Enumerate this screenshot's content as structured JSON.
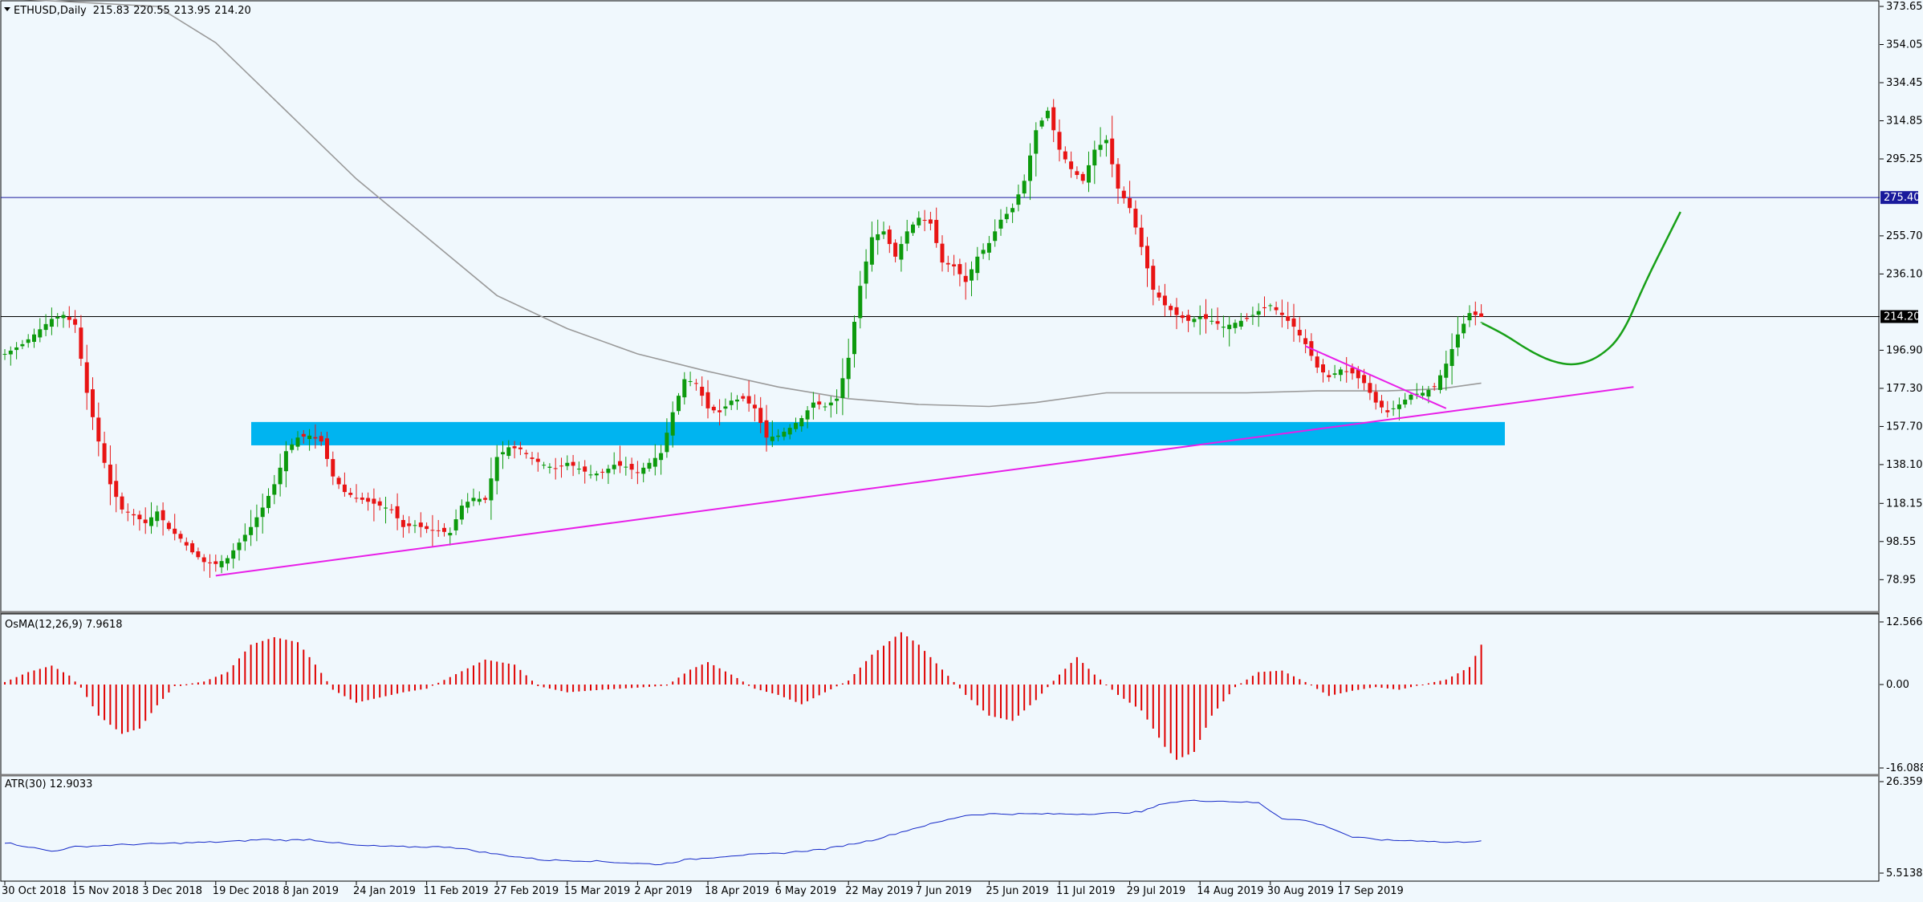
{
  "chart_data": [
    {
      "type": "candlestick",
      "symbol": "ETHUSD",
      "timeframe": "Daily",
      "ohlc_header": {
        "open": "215.83",
        "high": "220.55",
        "low": "213.95",
        "close": "214.20"
      },
      "ylim": [
        70,
        373.65
      ],
      "y_ticks": [
        "373.65",
        "354.05",
        "334.45",
        "314.85",
        "295.25",
        "255.70",
        "236.10",
        "196.90",
        "177.30",
        "157.70",
        "138.10",
        "118.15",
        "98.55",
        "78.95"
      ],
      "x_ticks": [
        "30 Oct 2018",
        "15 Nov 2018",
        "3 Dec 2018",
        "19 Dec 2018",
        "8 Jan 2019",
        "24 Jan 2019",
        "11 Feb 2019",
        "27 Feb 2019",
        "15 Mar 2019",
        "2 Apr 2019",
        "18 Apr 2019",
        "6 May 2019",
        "22 May 2019",
        "7 Jun 2019",
        "25 Jun 2019",
        "11 Jul 2019",
        "29 Jul 2019",
        "14 Aug 2019",
        "30 Aug 2019",
        "17 Sep 2019"
      ],
      "horizontal_levels": [
        {
          "value": 275.4,
          "label": "275.40",
          "color": "#1a1a9c"
        },
        {
          "value": 214.2,
          "label": "214.20",
          "color": "#000000"
        }
      ],
      "support_zone": {
        "y_low": 148,
        "y_high": 160,
        "color": "#00b4f0"
      },
      "candle_waypoints": [
        [
          0,
          195
        ],
        [
          3,
          200
        ],
        [
          5,
          205
        ],
        [
          8,
          213
        ],
        [
          10,
          215
        ],
        [
          12,
          210
        ],
        [
          14,
          175
        ],
        [
          16,
          150
        ],
        [
          18,
          128
        ],
        [
          20,
          115
        ],
        [
          22,
          112
        ],
        [
          24,
          108
        ],
        [
          26,
          114
        ],
        [
          28,
          105
        ],
        [
          30,
          100
        ],
        [
          32,
          93
        ],
        [
          34,
          88
        ],
        [
          36,
          87
        ],
        [
          38,
          90
        ],
        [
          40,
          98
        ],
        [
          42,
          106
        ],
        [
          44,
          116
        ],
        [
          46,
          128
        ],
        [
          48,
          145
        ],
        [
          50,
          152
        ],
        [
          52,
          153
        ],
        [
          54,
          150
        ],
        [
          56,
          132
        ],
        [
          58,
          124
        ],
        [
          60,
          121
        ],
        [
          62,
          119
        ],
        [
          64,
          117
        ],
        [
          66,
          115
        ],
        [
          68,
          106
        ],
        [
          70,
          107
        ],
        [
          72,
          105
        ],
        [
          74,
          104
        ],
        [
          76,
          103
        ],
        [
          78,
          117
        ],
        [
          80,
          121
        ],
        [
          82,
          120
        ],
        [
          84,
          142
        ],
        [
          86,
          147
        ],
        [
          88,
          146
        ],
        [
          90,
          141
        ],
        [
          92,
          138
        ],
        [
          94,
          136
        ],
        [
          96,
          139
        ],
        [
          98,
          136
        ],
        [
          100,
          133
        ],
        [
          102,
          134
        ],
        [
          104,
          138
        ],
        [
          106,
          137
        ],
        [
          108,
          134
        ],
        [
          110,
          139
        ],
        [
          112,
          144
        ],
        [
          114,
          165
        ],
        [
          116,
          182
        ],
        [
          118,
          180
        ],
        [
          120,
          167
        ],
        [
          122,
          165
        ],
        [
          124,
          171
        ],
        [
          126,
          172
        ],
        [
          128,
          167
        ],
        [
          130,
          152
        ],
        [
          132,
          153
        ],
        [
          134,
          157
        ],
        [
          136,
          162
        ],
        [
          138,
          170
        ],
        [
          140,
          168
        ],
        [
          142,
          172
        ],
        [
          144,
          193
        ],
        [
          146,
          230
        ],
        [
          148,
          255
        ],
        [
          150,
          258
        ],
        [
          152,
          245
        ],
        [
          154,
          258
        ],
        [
          156,
          265
        ],
        [
          158,
          262
        ],
        [
          160,
          242
        ],
        [
          162,
          240
        ],
        [
          164,
          232
        ],
        [
          166,
          245
        ],
        [
          168,
          252
        ],
        [
          170,
          264
        ],
        [
          172,
          270
        ],
        [
          174,
          284
        ],
        [
          176,
          310
        ],
        [
          178,
          320
        ],
        [
          180,
          300
        ],
        [
          182,
          290
        ],
        [
          184,
          284
        ],
        [
          186,
          300
        ],
        [
          188,
          305
        ],
        [
          190,
          280
        ],
        [
          192,
          270
        ],
        [
          194,
          250
        ],
        [
          196,
          228
        ],
        [
          198,
          220
        ],
        [
          200,
          215
        ],
        [
          202,
          212
        ],
        [
          204,
          214
        ],
        [
          206,
          212
        ],
        [
          208,
          209
        ],
        [
          210,
          211
        ],
        [
          212,
          213
        ],
        [
          214,
          217
        ],
        [
          216,
          220
        ],
        [
          218,
          215
        ],
        [
          220,
          209
        ],
        [
          222,
          200
        ],
        [
          224,
          188
        ],
        [
          226,
          183
        ],
        [
          228,
          187
        ],
        [
          230,
          185
        ],
        [
          232,
          180
        ],
        [
          234,
          170
        ],
        [
          236,
          165
        ],
        [
          238,
          169
        ],
        [
          240,
          174
        ],
        [
          242,
          175
        ],
        [
          244,
          178
        ],
        [
          246,
          190
        ],
        [
          248,
          205
        ],
        [
          250,
          216
        ],
        [
          252,
          214
        ]
      ],
      "moving_average_waypoints": [
        [
          0,
          380
        ],
        [
          26,
          373.65
        ],
        [
          36,
          355
        ],
        [
          48,
          320
        ],
        [
          60,
          285
        ],
        [
          72,
          255
        ],
        [
          84,
          225
        ],
        [
          96,
          208
        ],
        [
          108,
          195
        ],
        [
          120,
          186
        ],
        [
          132,
          178
        ],
        [
          144,
          172
        ],
        [
          156,
          169
        ],
        [
          168,
          168
        ],
        [
          176,
          170
        ],
        [
          188,
          175
        ],
        [
          200,
          175
        ],
        [
          212,
          175
        ],
        [
          224,
          176
        ],
        [
          236,
          176
        ],
        [
          245,
          177
        ],
        [
          252,
          180
        ]
      ],
      "trendlines": [
        {
          "from": [
            36,
            81
          ],
          "to": [
            278,
            178
          ],
          "color": "#e81ee8"
        },
        {
          "from": [
            222,
            199
          ],
          "to": [
            246,
            167
          ],
          "color": "#e81ee8"
        }
      ],
      "projection_path": [
        [
          252,
          211
        ],
        [
          256,
          205
        ],
        [
          260,
          197
        ],
        [
          264,
          191
        ],
        [
          268,
          189
        ],
        [
          272,
          193
        ],
        [
          276,
          204
        ],
        [
          280,
          232
        ],
        [
          284,
          256
        ],
        [
          286,
          268
        ]
      ],
      "projection_color": "#18a018"
    },
    {
      "type": "bar",
      "label": "OsMA(12,26,9) 7.9618",
      "ylim": [
        -16.0889,
        12.5664
      ],
      "y_ticks": [
        "12.5664",
        "0.00",
        "-16.0889"
      ],
      "color": "#e00000",
      "waypoints": [
        [
          0,
          0.5
        ],
        [
          4,
          2.5
        ],
        [
          8,
          3.8
        ],
        [
          11,
          1.8
        ],
        [
          13,
          -0.6
        ],
        [
          16,
          -6
        ],
        [
          20,
          -9.5
        ],
        [
          23,
          -8.5
        ],
        [
          26,
          -4
        ],
        [
          29,
          -0.3
        ],
        [
          34,
          0.6
        ],
        [
          38,
          2.5
        ],
        [
          42,
          8
        ],
        [
          46,
          9.5
        ],
        [
          50,
          8.5
        ],
        [
          53,
          4
        ],
        [
          56,
          -1
        ],
        [
          60,
          -3.5
        ],
        [
          64,
          -2.5
        ],
        [
          68,
          -1.5
        ],
        [
          72,
          -0.8
        ],
        [
          76,
          1.5
        ],
        [
          82,
          5
        ],
        [
          87,
          4
        ],
        [
          91,
          -0.3
        ],
        [
          96,
          -1.5
        ],
        [
          102,
          -1
        ],
        [
          108,
          -0.6
        ],
        [
          113,
          -0.2
        ],
        [
          117,
          3
        ],
        [
          120,
          4.5
        ],
        [
          124,
          2
        ],
        [
          128,
          -0.8
        ],
        [
          132,
          -2
        ],
        [
          136,
          -3.8
        ],
        [
          140,
          -1.5
        ],
        [
          144,
          0.8
        ],
        [
          148,
          6
        ],
        [
          153,
          10.5
        ],
        [
          156,
          8
        ],
        [
          160,
          3
        ],
        [
          164,
          -2
        ],
        [
          168,
          -6
        ],
        [
          172,
          -7
        ],
        [
          176,
          -3
        ],
        [
          180,
          2
        ],
        [
          183,
          5.5
        ],
        [
          186,
          2
        ],
        [
          190,
          -2
        ],
        [
          194,
          -5
        ],
        [
          198,
          -12
        ],
        [
          200,
          -14.5
        ],
        [
          203,
          -13
        ],
        [
          206,
          -6
        ],
        [
          210,
          -0.5
        ],
        [
          214,
          2.5
        ],
        [
          218,
          2.8
        ],
        [
          222,
          0.5
        ],
        [
          226,
          -2.2
        ],
        [
          230,
          -1.2
        ],
        [
          234,
          -0.5
        ],
        [
          238,
          -1
        ],
        [
          242,
          0
        ],
        [
          246,
          1
        ],
        [
          250,
          3.5
        ],
        [
          252,
          8
        ]
      ]
    },
    {
      "type": "line",
      "label": "ATR(30) 12.9033",
      "ylim": [
        5.5138,
        26.3592
      ],
      "y_ticks": [
        "26.3592",
        "5.5138"
      ],
      "color": "#1428c8",
      "waypoints": [
        [
          0,
          12.5
        ],
        [
          8,
          10.5
        ],
        [
          12,
          11.5
        ],
        [
          20,
          12
        ],
        [
          28,
          12.3
        ],
        [
          36,
          12.6
        ],
        [
          40,
          12.8
        ],
        [
          44,
          13.2
        ],
        [
          48,
          13
        ],
        [
          52,
          13.2
        ],
        [
          60,
          11.8
        ],
        [
          68,
          11.5
        ],
        [
          76,
          11.5
        ],
        [
          84,
          9.8
        ],
        [
          92,
          8.5
        ],
        [
          100,
          8.3
        ],
        [
          108,
          7.7
        ],
        [
          112,
          7.5
        ],
        [
          116,
          8.5
        ],
        [
          124,
          9.5
        ],
        [
          132,
          10
        ],
        [
          140,
          11
        ],
        [
          148,
          13
        ],
        [
          156,
          16
        ],
        [
          164,
          18.7
        ],
        [
          168,
          19
        ],
        [
          176,
          19
        ],
        [
          184,
          19
        ],
        [
          190,
          19.2
        ],
        [
          194,
          19.5
        ],
        [
          198,
          21.5
        ],
        [
          202,
          22
        ],
        [
          206,
          22
        ],
        [
          210,
          21.8
        ],
        [
          214,
          21.5
        ],
        [
          218,
          18
        ],
        [
          222,
          17.5
        ],
        [
          226,
          16
        ],
        [
          230,
          13.7
        ],
        [
          236,
          13
        ],
        [
          242,
          12.9
        ],
        [
          246,
          12.5
        ],
        [
          250,
          12.7
        ],
        [
          252,
          12.9
        ]
      ]
    }
  ]
}
